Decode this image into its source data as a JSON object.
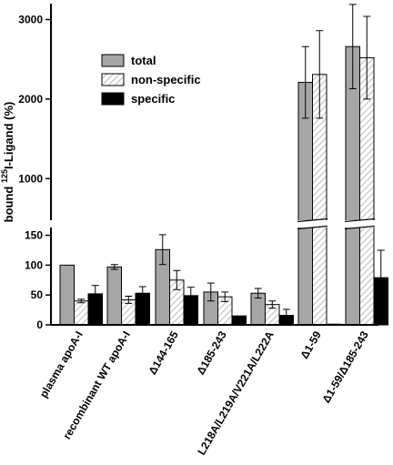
{
  "chart_data": {
    "type": "bar",
    "ylabel_prefix": "bound ",
    "ylabel_sup": "125",
    "ylabel_suffix": "I-Ligand (%)",
    "broken_axis": true,
    "ylim_lower": [
      0,
      160
    ],
    "ylim_upper": [
      500,
      3200
    ],
    "yticks_lower": [
      "0",
      "50",
      "100",
      "150"
    ],
    "yticks_upper": [
      "1000",
      "2000",
      "3000"
    ],
    "categories": [
      "plasma apoA-I",
      "recombinant WT apoA-I",
      "Δ144-165",
      "Δ185-243",
      "L218A/L219A/V221A/L222A",
      "Δ1-59",
      "Δ1-59/Δ185-243"
    ],
    "legend_position": "top-left",
    "series": [
      {
        "name": "total",
        "fill": "#a6a6a6",
        "pattern": "solid",
        "values": [
          100,
          97,
          126,
          55,
          53,
          2210,
          2660
        ],
        "errors": [
          0,
          4,
          25,
          15,
          8,
          450,
          530
        ]
      },
      {
        "name": "non-specific",
        "fill": "#ffffff",
        "pattern": "hatched",
        "values": [
          40,
          42,
          75,
          47,
          34,
          2310,
          2520
        ],
        "errors": [
          3,
          6,
          16,
          8,
          6,
          550,
          520
        ]
      },
      {
        "name": "specific",
        "fill": "#000000",
        "pattern": "solid",
        "values": [
          52,
          53,
          49,
          15,
          16,
          1,
          79
        ],
        "errors": [
          14,
          11,
          14,
          0,
          10,
          0,
          46
        ]
      }
    ]
  }
}
